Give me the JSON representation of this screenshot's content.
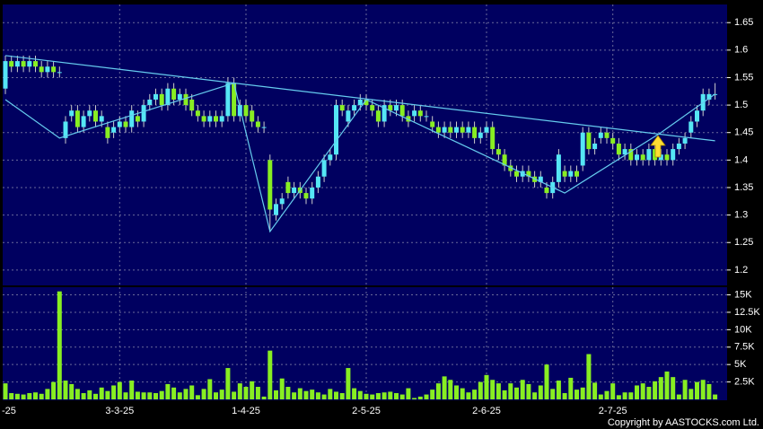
{
  "chart_data": {
    "type": "candlestick",
    "categories": [
      "-25",
      null,
      null,
      null,
      null,
      null,
      null,
      null,
      null,
      null,
      null,
      null,
      null,
      null,
      null,
      null,
      null,
      null,
      null,
      "3-3-25",
      null,
      null,
      null,
      null,
      null,
      null,
      null,
      null,
      null,
      null,
      null,
      null,
      null,
      null,
      null,
      null,
      null,
      null,
      null,
      null,
      "1-4-25",
      null,
      null,
      null,
      null,
      null,
      null,
      null,
      null,
      null,
      null,
      null,
      null,
      null,
      null,
      null,
      null,
      null,
      null,
      null,
      "2-5-25",
      null,
      null,
      null,
      null,
      null,
      null,
      null,
      null,
      null,
      null,
      null,
      null,
      null,
      null,
      null,
      null,
      null,
      null,
      null,
      "2-6-25",
      null,
      null,
      null,
      null,
      null,
      null,
      null,
      null,
      null,
      null,
      null,
      null,
      null,
      null,
      null,
      null,
      null,
      null,
      null,
      null,
      "2-7-25",
      null,
      null,
      null,
      null,
      null,
      null,
      null,
      null,
      null,
      null,
      null,
      null,
      null,
      null,
      null,
      null,
      null
    ],
    "open": [
      1.53,
      1.58,
      1.57,
      1.58,
      1.57,
      1.58,
      1.57,
      1.56,
      1.57,
      1.56,
      1.44,
      1.48,
      1.49,
      1.46,
      1.48,
      1.49,
      1.47,
      1.46,
      1.45,
      1.46,
      1.47,
      1.46,
      1.48,
      1.47,
      1.5,
      1.51,
      1.52,
      1.5,
      1.53,
      1.51,
      1.52,
      1.51,
      1.49,
      1.48,
      1.47,
      1.48,
      1.47,
      1.48,
      1.54,
      1.48,
      1.5,
      1.49,
      1.47,
      1.46,
      1.4,
      1.3,
      1.32,
      1.36,
      1.34,
      1.35,
      1.34,
      1.33,
      1.35,
      1.37,
      1.4,
      1.41,
      1.5,
      1.47,
      1.49,
      1.5,
      1.51,
      1.5,
      1.49,
      1.47,
      1.5,
      1.49,
      1.5,
      1.48,
      1.48,
      1.49,
      1.48,
      1.47,
      1.46,
      1.45,
      1.46,
      1.45,
      1.46,
      1.45,
      1.46,
      1.44,
      1.45,
      1.46,
      1.42,
      1.41,
      1.39,
      1.38,
      1.37,
      1.38,
      1.37,
      1.36,
      1.35,
      1.34,
      1.36,
      1.38,
      1.37,
      1.38,
      1.39,
      1.45,
      1.42,
      1.44,
      1.45,
      1.44,
      1.43,
      1.41,
      1.42,
      1.4,
      1.41,
      1.4,
      1.42,
      1.4,
      1.41,
      1.4,
      1.42,
      1.43,
      1.45,
      1.47,
      1.49,
      1.51,
      1.52
    ],
    "high": [
      1.59,
      1.59,
      1.59,
      1.59,
      1.59,
      1.59,
      1.58,
      1.58,
      1.58,
      1.57,
      1.48,
      1.5,
      1.5,
      1.49,
      1.5,
      1.5,
      1.49,
      1.47,
      1.47,
      1.48,
      1.48,
      1.5,
      1.49,
      1.51,
      1.52,
      1.53,
      1.53,
      1.54,
      1.54,
      1.53,
      1.53,
      1.52,
      1.5,
      1.49,
      1.49,
      1.49,
      1.49,
      1.55,
      1.55,
      1.51,
      1.51,
      1.5,
      1.48,
      1.47,
      1.41,
      1.33,
      1.34,
      1.37,
      1.36,
      1.36,
      1.35,
      1.36,
      1.38,
      1.41,
      1.42,
      1.51,
      1.51,
      1.5,
      1.51,
      1.52,
      1.52,
      1.51,
      1.5,
      1.51,
      1.51,
      1.51,
      1.51,
      1.49,
      1.5,
      1.5,
      1.49,
      1.48,
      1.47,
      1.47,
      1.47,
      1.47,
      1.47,
      1.47,
      1.47,
      1.46,
      1.47,
      1.47,
      1.43,
      1.42,
      1.4,
      1.39,
      1.39,
      1.39,
      1.38,
      1.38,
      1.36,
      1.37,
      1.42,
      1.39,
      1.39,
      1.39,
      1.46,
      1.46,
      1.44,
      1.46,
      1.46,
      1.45,
      1.44,
      1.43,
      1.43,
      1.42,
      1.42,
      1.43,
      1.43,
      1.42,
      1.42,
      1.43,
      1.44,
      1.45,
      1.48,
      1.5,
      1.53,
      1.53,
      1.54
    ],
    "low": [
      1.52,
      1.56,
      1.56,
      1.56,
      1.56,
      1.56,
      1.55,
      1.55,
      1.55,
      1.55,
      1.43,
      1.47,
      1.45,
      1.45,
      1.47,
      1.46,
      1.46,
      1.43,
      1.44,
      1.45,
      1.45,
      1.45,
      1.46,
      1.46,
      1.49,
      1.5,
      1.49,
      1.49,
      1.5,
      1.5,
      1.49,
      1.48,
      1.47,
      1.46,
      1.46,
      1.46,
      1.46,
      1.47,
      1.47,
      1.47,
      1.47,
      1.46,
      1.45,
      1.45,
      1.27,
      1.29,
      1.31,
      1.33,
      1.33,
      1.33,
      1.32,
      1.32,
      1.34,
      1.36,
      1.39,
      1.4,
      1.48,
      1.46,
      1.48,
      1.49,
      1.49,
      1.48,
      1.46,
      1.46,
      1.48,
      1.48,
      1.47,
      1.46,
      1.47,
      1.47,
      1.47,
      1.45,
      1.44,
      1.44,
      1.44,
      1.44,
      1.44,
      1.44,
      1.43,
      1.43,
      1.44,
      1.41,
      1.4,
      1.38,
      1.37,
      1.36,
      1.36,
      1.36,
      1.35,
      1.35,
      1.33,
      1.33,
      1.35,
      1.36,
      1.36,
      1.36,
      1.38,
      1.41,
      1.41,
      1.43,
      1.43,
      1.42,
      1.4,
      1.4,
      1.39,
      1.39,
      1.39,
      1.39,
      1.39,
      1.39,
      1.39,
      1.39,
      1.41,
      1.42,
      1.44,
      1.46,
      1.48,
      1.5,
      1.51
    ],
    "close": [
      1.58,
      1.57,
      1.58,
      1.57,
      1.58,
      1.57,
      1.56,
      1.57,
      1.56,
      1.56,
      1.47,
      1.49,
      1.46,
      1.48,
      1.49,
      1.47,
      1.48,
      1.44,
      1.46,
      1.47,
      1.46,
      1.49,
      1.47,
      1.5,
      1.51,
      1.52,
      1.5,
      1.53,
      1.51,
      1.52,
      1.5,
      1.49,
      1.48,
      1.47,
      1.48,
      1.47,
      1.48,
      1.54,
      1.48,
      1.5,
      1.48,
      1.47,
      1.46,
      1.46,
      1.31,
      1.32,
      1.33,
      1.34,
      1.35,
      1.34,
      1.33,
      1.35,
      1.37,
      1.4,
      1.41,
      1.5,
      1.49,
      1.49,
      1.5,
      1.51,
      1.5,
      1.49,
      1.47,
      1.5,
      1.49,
      1.5,
      1.48,
      1.47,
      1.49,
      1.48,
      1.48,
      1.46,
      1.45,
      1.46,
      1.45,
      1.46,
      1.45,
      1.46,
      1.44,
      1.45,
      1.46,
      1.42,
      1.41,
      1.39,
      1.38,
      1.37,
      1.38,
      1.37,
      1.36,
      1.37,
      1.34,
      1.36,
      1.41,
      1.37,
      1.38,
      1.37,
      1.45,
      1.42,
      1.43,
      1.45,
      1.44,
      1.43,
      1.41,
      1.42,
      1.4,
      1.41,
      1.4,
      1.42,
      1.4,
      1.41,
      1.4,
      1.42,
      1.43,
      1.44,
      1.47,
      1.49,
      1.52,
      1.52,
      1.52
    ],
    "up_color": "#55e6f5",
    "down_color": "#88ee22",
    "ylim": [
      1.172,
      1.683
    ],
    "yticks": [
      1.2,
      1.25,
      1.3,
      1.35,
      1.4,
      1.45,
      1.5,
      1.55,
      1.6,
      1.65
    ],
    "grid": true,
    "overlays": [
      {
        "color": "#66ccee",
        "x": [
          0,
          9,
          38,
          44,
          60,
          93,
          109,
          118
        ],
        "y": [
          1.51,
          1.44,
          1.54,
          1.27,
          1.51,
          1.34,
          1.45,
          1.52
        ]
      },
      {
        "color": "#66ccee",
        "x": [
          0,
          118
        ],
        "y": [
          1.59,
          1.435
        ]
      }
    ],
    "volume": {
      "color": "#88ee22",
      "values": [
        2300,
        900,
        800,
        700,
        900,
        1000,
        800,
        1500,
        2500,
        15500,
        2700,
        2200,
        1500,
        900,
        1300,
        800,
        1700,
        1200,
        2000,
        2500,
        1000,
        2700,
        1100,
        1000,
        1000,
        900,
        1200,
        2200,
        1700,
        1000,
        1500,
        2000,
        600,
        1500,
        2900,
        1000,
        1400,
        4500,
        1100,
        2300,
        1800,
        2600,
        1800,
        400,
        7000,
        1300,
        3000,
        1800,
        1000,
        1600,
        1200,
        1400,
        1000,
        700,
        1500,
        1100,
        900,
        4500,
        1600,
        1200,
        800,
        700,
        900,
        1000,
        1100,
        900,
        700,
        1600,
        200,
        400,
        700,
        1400,
        2300,
        3300,
        2800,
        2000,
        1600,
        1000,
        1400,
        2500,
        3500,
        2800,
        2300,
        1300,
        2300,
        1700,
        2800,
        2200,
        1000,
        2000,
        5000,
        1500,
        2700,
        900,
        3100,
        1400,
        1700,
        6500,
        2400,
        700,
        1200,
        2300,
        600,
        1000,
        1000,
        2000,
        2300,
        1800,
        2600,
        3200,
        4000,
        3200,
        700,
        2800,
        1500,
        2500,
        2800,
        2200,
        700
      ],
      "ylim": [
        0,
        16100
      ],
      "yticks": [
        {
          "value": 2500,
          "label": "2.5K"
        },
        {
          "value": 5000,
          "label": "5K"
        },
        {
          "value": 7500,
          "label": "7.5K"
        },
        {
          "value": 10000,
          "label": "10K"
        },
        {
          "value": 12500,
          "label": "12.5K"
        },
        {
          "value": 15000,
          "label": "15K"
        }
      ]
    },
    "footer": "Copyright by AASTOCKS.com Ltd."
  }
}
